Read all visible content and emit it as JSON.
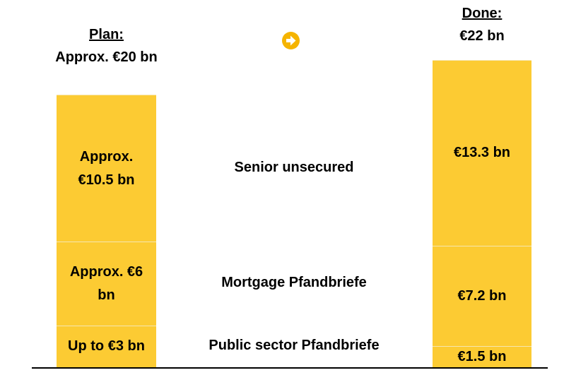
{
  "chart_data": {
    "type": "bar",
    "stacked": true,
    "categories": [
      "Plan:",
      "Done:"
    ],
    "category_totals": [
      "Approx. €20 bn",
      "€22 bn"
    ],
    "ylim": [
      0,
      22
    ],
    "series": [
      {
        "name": "Public sector Pfandbriefe",
        "color": "#fccb33",
        "values": [
          3,
          1.5
        ],
        "value_labels": [
          "Up to €3 bn",
          "€1.5 bn"
        ]
      },
      {
        "name": "Mortgage Pfandbriefe",
        "color": "#fccb33",
        "values": [
          6,
          7.2
        ],
        "value_labels": [
          "Approx. €6 bn",
          "€7.2 bn"
        ]
      },
      {
        "name": "Senior unsecured",
        "color": "#fccb33",
        "values": [
          10.5,
          13.3
        ],
        "value_labels": [
          "Approx. €10.5 bn",
          "€13.3 bn"
        ]
      }
    ]
  }
}
